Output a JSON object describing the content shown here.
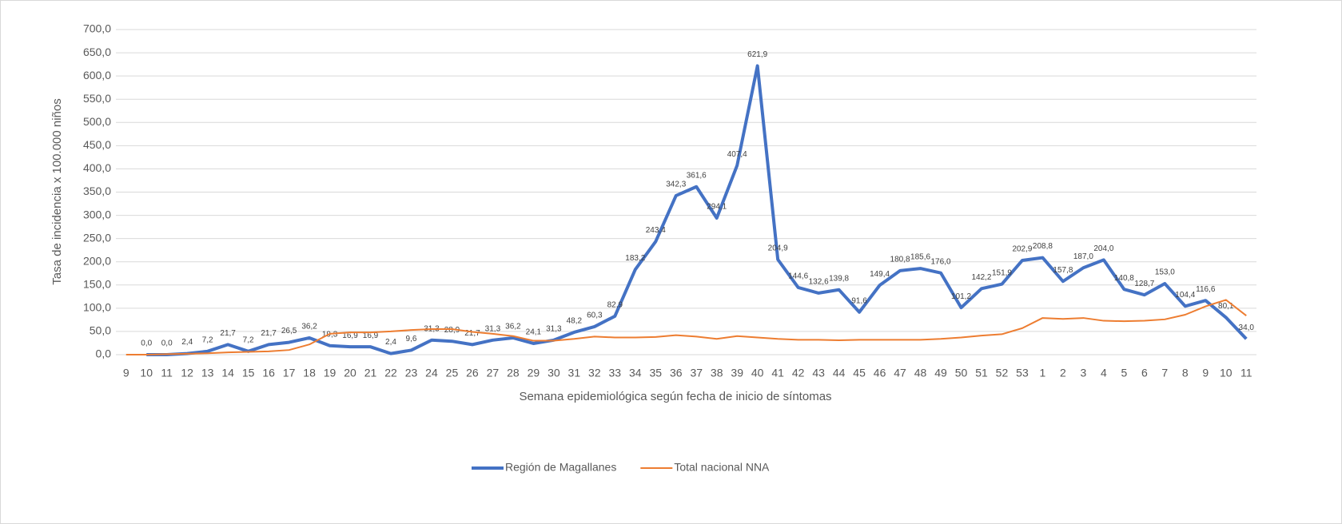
{
  "chart_data": {
    "type": "line",
    "y_axis_label": "Tasa de incidencia x 100.000 niños",
    "x_axis_label": "Semana epidemiológica según fecha de inicio de síntomas",
    "categories": [
      "9",
      "10",
      "11",
      "12",
      "13",
      "14",
      "15",
      "16",
      "17",
      "18",
      "19",
      "20",
      "21",
      "22",
      "23",
      "24",
      "25",
      "26",
      "27",
      "28",
      "29",
      "30",
      "31",
      "32",
      "33",
      "34",
      "35",
      "36",
      "37",
      "38",
      "39",
      "40",
      "41",
      "42",
      "43",
      "44",
      "45",
      "46",
      "47",
      "48",
      "49",
      "50",
      "51",
      "52",
      "53",
      "1",
      "2",
      "3",
      "4",
      "5",
      "6",
      "7",
      "8",
      "9",
      "10",
      "11"
    ],
    "ylim": [
      0,
      700
    ],
    "yticks": [
      {
        "value": 0,
        "label": "0,0"
      },
      {
        "value": 50,
        "label": "50,0"
      },
      {
        "value": 100,
        "label": "100,0"
      },
      {
        "value": 150,
        "label": "150,0"
      },
      {
        "value": 200,
        "label": "200,0"
      },
      {
        "value": 250,
        "label": "250,0"
      },
      {
        "value": 300,
        "label": "300,0"
      },
      {
        "value": 350,
        "label": "350,0"
      },
      {
        "value": 400,
        "label": "400,0"
      },
      {
        "value": 450,
        "label": "450,0"
      },
      {
        "value": 500,
        "label": "500,0"
      },
      {
        "value": 550,
        "label": "550,0"
      },
      {
        "value": 600,
        "label": "600,0"
      },
      {
        "value": 650,
        "label": "650,0"
      },
      {
        "value": 700,
        "label": "700,0"
      }
    ],
    "grid": true,
    "legend": "bottom",
    "series": [
      {
        "name": "Región de Magallanes",
        "color": "#4472c4",
        "values": [
          null,
          0.0,
          0.0,
          2.4,
          7.2,
          21.7,
          7.2,
          21.7,
          26.5,
          36.2,
          19.3,
          16.9,
          16.9,
          2.4,
          9.6,
          31.3,
          28.9,
          21.7,
          31.3,
          36.2,
          24.1,
          31.3,
          48.2,
          60.3,
          82.9,
          183.2,
          243.4,
          342.3,
          361.6,
          294.1,
          407.4,
          621.9,
          204.9,
          144.6,
          132.6,
          139.8,
          91.6,
          149.4,
          180.8,
          185.6,
          176.0,
          101.2,
          142.2,
          151.9,
          202.9,
          208.8,
          157.8,
          187.0,
          204.0,
          140.8,
          128.7,
          153.0,
          104.4,
          116.6,
          80.1,
          34.0
        ],
        "value_labels": [
          null,
          "0,0",
          "0,0",
          "2,4",
          "7,2",
          "21,7",
          "7,2",
          "21,7",
          "26,5",
          "36,2",
          "19,3",
          "16,9",
          "16,9",
          "2,4",
          "9,6",
          "31,3",
          "28,9",
          "21,7",
          "31,3",
          "36,2",
          "24,1",
          "31,3",
          "48,2",
          "60,3",
          "82,9",
          "183,2",
          "243,4",
          "342,3",
          "361,6",
          "294,1",
          "407,4",
          "621,9",
          "204,9",
          "144,6",
          "132,6",
          "139,8",
          "91,6",
          "149,4",
          "180,8",
          "185,6",
          "176,0",
          "101,2",
          "142,2",
          "151,9",
          "202,9",
          "208,8",
          "157,8",
          "187,0",
          "204,0",
          "140,8",
          "128,7",
          "153,0",
          "104,4",
          "116,6",
          "80,1",
          "34,0"
        ]
      },
      {
        "name": "Total nacional NNA",
        "color": "#ed7d31",
        "values": [
          0,
          0,
          1,
          2,
          3,
          5,
          6,
          7,
          10,
          22,
          45,
          48,
          48,
          50,
          53,
          55,
          55,
          49,
          45,
          40,
          30,
          30,
          34,
          39,
          37,
          37,
          38,
          42,
          39,
          34,
          40,
          37,
          34,
          32,
          32,
          31,
          32,
          32,
          32,
          32,
          34,
          37,
          41,
          44,
          57,
          79,
          77,
          79,
          73,
          72,
          73,
          76,
          86,
          104,
          118,
          84
        ]
      }
    ]
  }
}
